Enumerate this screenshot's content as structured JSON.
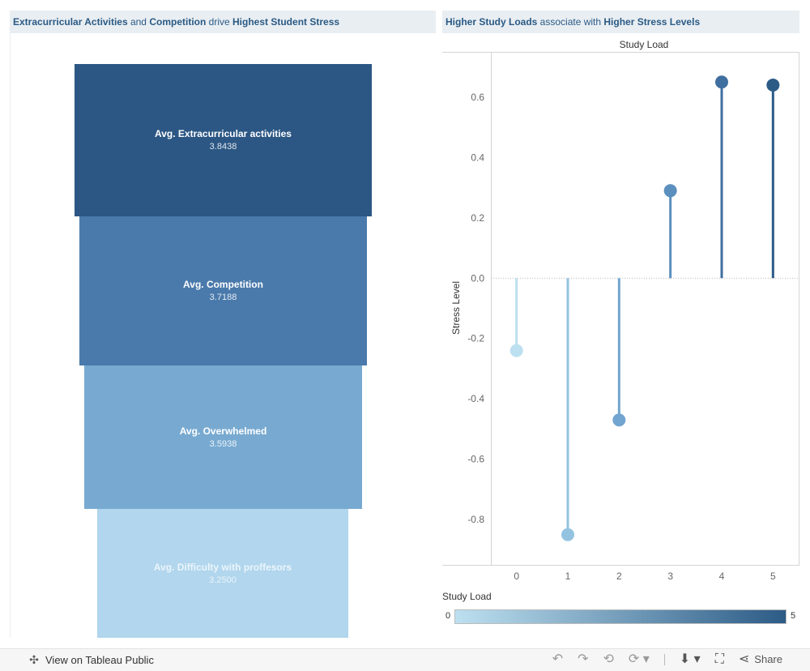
{
  "left_title": {
    "p1": "Extracurricular Activities",
    "p2": " and ",
    "p3": "Competition",
    "p4": " drive ",
    "p5": "Highest Student Stress"
  },
  "right_title": {
    "p1": "Higher Study Loads",
    "p2": " associate with ",
    "p3": "Higher Stress Levels"
  },
  "funnel": [
    {
      "label": "Avg. Extracurricular activities",
      "value": "3.8438",
      "color": "#2c5784"
    },
    {
      "label": "Avg. Competition",
      "value": "3.7188",
      "color": "#4a7aab"
    },
    {
      "label": "Avg. Overwhelmed",
      "value": "3.5938",
      "color": "#78aad1"
    },
    {
      "label": "Avg. Difficulty with proffesors",
      "value": "3.2500",
      "color": "#b1d6ed"
    }
  ],
  "chart_data": [
    {
      "type": "bar",
      "title": "",
      "categories": [
        "Avg. Extracurricular activities",
        "Avg. Competition",
        "Avg. Overwhelmed",
        "Avg. Difficulty with proffesors"
      ],
      "values": [
        3.8438,
        3.7188,
        3.5938,
        3.25
      ]
    },
    {
      "type": "scatter",
      "title": "",
      "xlabel": "Study Load",
      "ylabel": "Stress Level",
      "x": [
        0,
        1,
        2,
        3,
        4,
        5
      ],
      "y": [
        -0.24,
        -0.85,
        -0.47,
        0.29,
        0.65,
        0.64
      ],
      "xlim": [
        -0.5,
        5.5
      ],
      "ylim": [
        -0.95,
        0.75
      ],
      "yticks": [
        0.6,
        0.4,
        0.2,
        0.0,
        -0.2,
        -0.4,
        -0.6,
        -0.8
      ],
      "ytick_labels": [
        "0.6",
        "0.4",
        "0.2",
        "0.0",
        "-0.2",
        "-0.4",
        "-0.6",
        "-0.8"
      ],
      "xticks": [
        0,
        1,
        2,
        3,
        4,
        5
      ],
      "colors": [
        "#bde0f0",
        "#93c3e0",
        "#72a5cf",
        "#5b8fbe",
        "#3f6f9f",
        "#2c5b86"
      ],
      "grid": false,
      "legend": {
        "title": "Study Load",
        "min": "0",
        "max": "5",
        "placement": "bottom-left"
      }
    }
  ],
  "footer": {
    "view_label": "View on Tableau Public",
    "share_label": "Share"
  }
}
